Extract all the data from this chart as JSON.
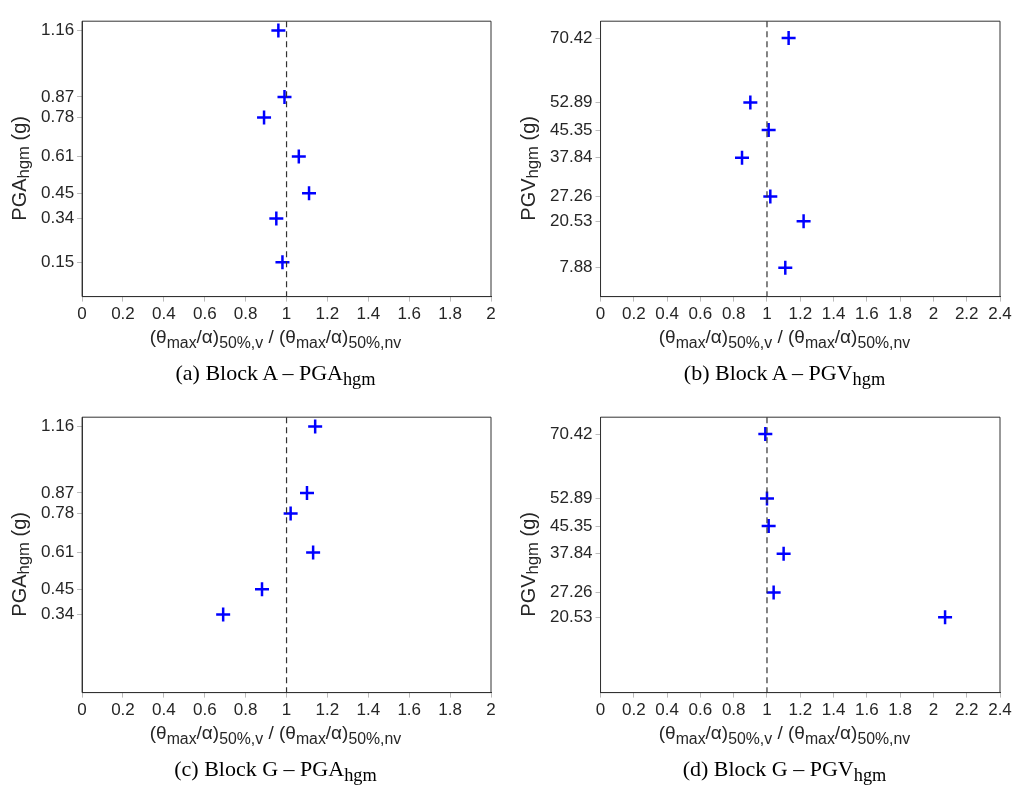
{
  "chart_data": [
    {
      "type": "scatter",
      "title": "(a) Block A – PGA$_{hgm}$",
      "xlabel": "(θ$_{max}$/α)$_{50%,v}$ / (θ$_{max}$/α)$_{50%,nv}$",
      "ylabel": "PGA$_{hgm}$ (g)",
      "series": [
        {
          "color": "#0000ff",
          "x": [
            0.96,
            0.99,
            0.89,
            1.06,
            1.11,
            0.95,
            0.98
          ],
          "values": [
            1.16,
            0.87,
            0.78,
            0.61,
            0.45,
            0.34,
            0.15
          ]
        }
      ],
      "xlim": [
        0,
        2
      ],
      "xticks": [
        0,
        0.2,
        0.4,
        0.6,
        0.8,
        1,
        1.2,
        1.4,
        1.6,
        1.8,
        2
      ],
      "ylim": [
        0,
        1.2
      ],
      "yticks": [
        0.15,
        0.34,
        0.45,
        0.61,
        0.78,
        0.87,
        1.16
      ],
      "ref_lines": [
        {
          "axis": "x",
          "value": 1,
          "color": "#333333",
          "line_style": "dashed"
        }
      ],
      "marker": "cross",
      "grid": false,
      "legend": false
    },
    {
      "type": "scatter",
      "title": "(b) Block A – PGV$_{hgm}$",
      "xlabel": "(θ$_{max}$/α)$_{50%,v}$ / (θ$_{max}$/α)$_{50%,nv}$",
      "ylabel": "PGV$_{hgm}$ (g)",
      "series": [
        {
          "color": "#0000ff",
          "x": [
            1.13,
            0.9,
            1.01,
            0.85,
            1.02,
            1.22,
            1.11
          ],
          "values": [
            70.42,
            52.89,
            45.35,
            37.84,
            27.26,
            20.53,
            7.88
          ]
        }
      ],
      "xlim": [
        0,
        2.4
      ],
      "xticks": [
        0,
        0.2,
        0.4,
        0.6,
        0.8,
        1,
        1.2,
        1.4,
        1.6,
        1.8,
        2,
        2.2,
        2.4
      ],
      "ylim": [
        0,
        75
      ],
      "yticks": [
        7.88,
        20.53,
        27.26,
        37.84,
        45.35,
        52.89,
        70.42
      ],
      "ref_lines": [
        {
          "axis": "x",
          "value": 1,
          "color": "#333333",
          "line_style": "dashed"
        }
      ],
      "marker": "cross",
      "grid": false,
      "legend": false
    },
    {
      "type": "scatter",
      "title": "(c) Block G – PGA$_{hgm}$",
      "xlabel": "(θ$_{max}$/α)$_{50%,v}$ / (θ$_{max}$/α)$_{50%,nv}$",
      "ylabel": "PGA$_{hgm}$ (g)",
      "series": [
        {
          "color": "#0000ff",
          "x": [
            1.14,
            1.1,
            1.02,
            1.13,
            0.88,
            0.69
          ],
          "values": [
            1.16,
            0.87,
            0.78,
            0.61,
            0.45,
            0.34
          ]
        }
      ],
      "xlim": [
        0,
        2
      ],
      "xticks": [
        0,
        0.2,
        0.4,
        0.6,
        0.8,
        1,
        1.2,
        1.4,
        1.6,
        1.8,
        2
      ],
      "ylim": [
        0,
        1.2
      ],
      "yticks": [
        0.34,
        0.45,
        0.61,
        0.78,
        0.87,
        1.16
      ],
      "ref_lines": [
        {
          "axis": "x",
          "value": 1,
          "color": "#333333",
          "line_style": "dashed"
        }
      ],
      "marker": "cross",
      "grid": false,
      "legend": false
    },
    {
      "type": "scatter",
      "title": "(d) Block G – PGV$_{hgm}$",
      "xlabel": "(θ$_{max}$/α)$_{50%,v}$ / (θ$_{max}$/α)$_{50%,nv}$",
      "ylabel": "PGV$_{hgm}$ (g)",
      "series": [
        {
          "color": "#0000ff",
          "x": [
            0.99,
            1.0,
            1.01,
            1.1,
            1.04,
            2.07
          ],
          "values": [
            70.42,
            52.89,
            45.35,
            37.84,
            27.26,
            20.53
          ]
        }
      ],
      "xlim": [
        0,
        2.4
      ],
      "xticks": [
        0,
        0.2,
        0.4,
        0.6,
        0.8,
        1,
        1.2,
        1.4,
        1.6,
        1.8,
        2,
        2.2,
        2.4
      ],
      "ylim": [
        0,
        75
      ],
      "yticks": [
        20.53,
        27.26,
        37.84,
        45.35,
        52.89,
        70.42
      ],
      "ref_lines": [
        {
          "axis": "x",
          "value": 1,
          "color": "#333333",
          "line_style": "dashed"
        }
      ],
      "marker": "cross",
      "grid": false,
      "legend": false
    }
  ]
}
